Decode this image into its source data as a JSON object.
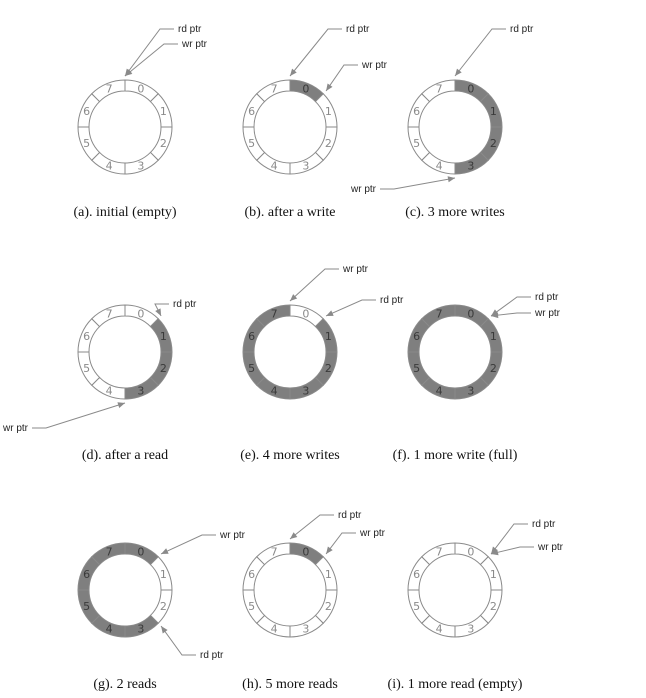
{
  "colors": {
    "filled": "#7f7f7f",
    "empty": "#ffffff",
    "outline": "#8a8a8a",
    "text_on_empty": "#8a8a8a",
    "text_on_filled": "#3a3a3a",
    "arrow": "#8a8a8a"
  },
  "slot_labels": [
    "0",
    "1",
    "2",
    "3",
    "4",
    "5",
    "6",
    "7"
  ],
  "panels": [
    {
      "caption": "(a). initial (empty)",
      "filled": [],
      "pointers": [
        {
          "label": "rd ptr",
          "slot_boundary": 0
        },
        {
          "label": "wr ptr",
          "slot_boundary": 0
        }
      ]
    },
    {
      "caption": "(b). after a write",
      "filled": [
        0
      ],
      "pointers": [
        {
          "label": "rd ptr",
          "slot_boundary": 0
        },
        {
          "label": "wr ptr",
          "slot_boundary": 1
        }
      ]
    },
    {
      "caption": "(c). 3 more writes",
      "filled": [
        0,
        1,
        2,
        3
      ],
      "pointers": [
        {
          "label": "rd ptr",
          "slot_boundary": 0
        },
        {
          "label": "wr ptr",
          "slot_boundary": 4
        }
      ]
    },
    {
      "caption": "(d). after a read",
      "filled": [
        1,
        2,
        3
      ],
      "pointers": [
        {
          "label": "rd ptr",
          "slot_boundary": 1
        },
        {
          "label": "wr ptr",
          "slot_boundary": 4
        }
      ]
    },
    {
      "caption": "(e). 4 more writes",
      "filled": [
        1,
        2,
        3,
        4,
        5,
        6,
        7
      ],
      "pointers": [
        {
          "label": "wr ptr",
          "slot_boundary": 0
        },
        {
          "label": "rd ptr",
          "slot_boundary": 1
        }
      ]
    },
    {
      "caption": "(f). 1 more write (full)",
      "filled": [
        0,
        1,
        2,
        3,
        4,
        5,
        6,
        7
      ],
      "pointers": [
        {
          "label": "rd ptr",
          "slot_boundary": 1
        },
        {
          "label": "wr ptr",
          "slot_boundary": 1
        }
      ]
    },
    {
      "caption": "(g). 2 reads",
      "filled": [
        3,
        4,
        5,
        6,
        7,
        0
      ],
      "pointers": [
        {
          "label": "wr ptr",
          "slot_boundary": 1
        },
        {
          "label": "rd ptr",
          "slot_boundary": 3
        }
      ]
    },
    {
      "caption": "(h). 5 more reads",
      "filled": [
        0
      ],
      "pointers": [
        {
          "label": "rd ptr",
          "slot_boundary": 0
        },
        {
          "label": "wr ptr",
          "slot_boundary": 1
        }
      ]
    },
    {
      "caption": "(i). 1 more read (empty)",
      "filled": [],
      "pointers": [
        {
          "label": "rd ptr",
          "slot_boundary": 1
        },
        {
          "label": "wr ptr",
          "slot_boundary": 1
        }
      ]
    }
  ]
}
